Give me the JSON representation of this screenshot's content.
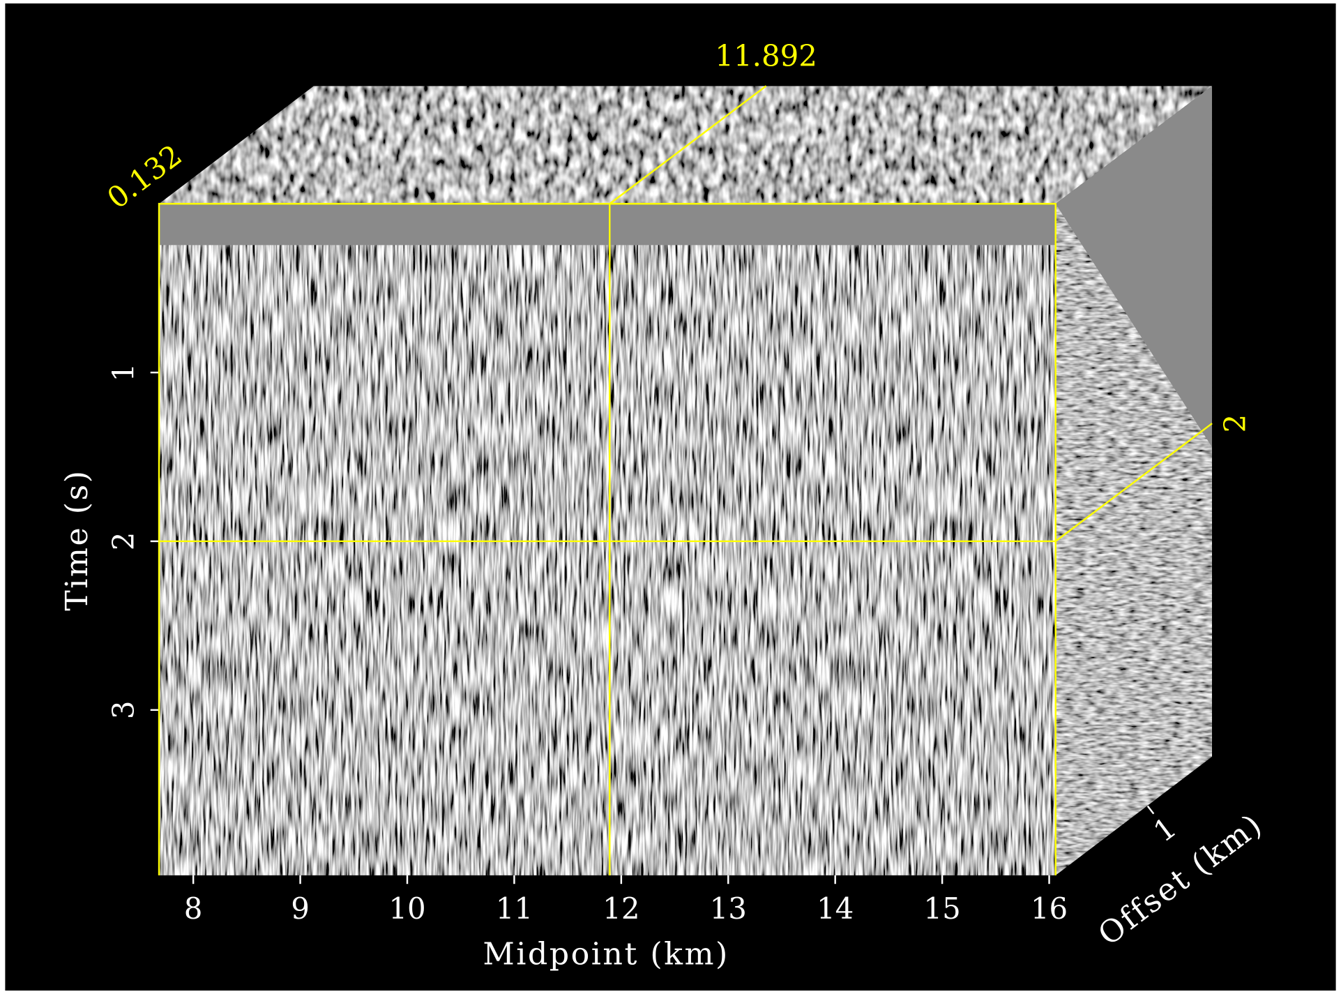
{
  "chart_data": {
    "type": "cube",
    "xlabel": "Midpoint (km)",
    "ylabel": "Time (s)",
    "zlabel": "Offset (km)",
    "xlim": [
      7.68,
      16.06
    ],
    "xticks": [
      8,
      9,
      10,
      11,
      12,
      13,
      14,
      15,
      16
    ],
    "ylim": [
      0,
      3.98
    ],
    "yticks": [
      1,
      2,
      3
    ],
    "zlim": [
      0,
      1.7
    ],
    "zticks": [
      1
    ],
    "slice_midpoint": 11.892,
    "slice_time": 2,
    "slice_offset": 0.132,
    "slice_color": "#ffff00"
  }
}
